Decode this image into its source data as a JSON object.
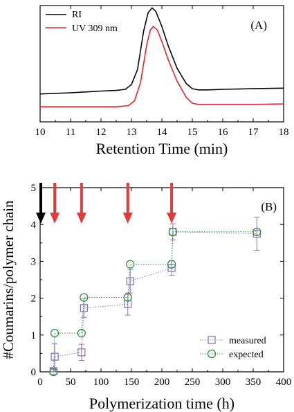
{
  "colors": {
    "ri": "#000000",
    "uv": "#e8242a",
    "measured": "#8a74c0",
    "expected": "#2f8f3a",
    "arrow_red": "#e23b3b",
    "arrow_black": "#000000",
    "axis": "#000000"
  },
  "chart_data": [
    {
      "type": "line",
      "panel_label": "(A)",
      "xlabel": "Retention Time (min)",
      "ylabel": "",
      "xlim": [
        10,
        18
      ],
      "ylim": [
        0,
        1
      ],
      "x_ticks": [
        10,
        11,
        12,
        13,
        14,
        15,
        16,
        17,
        18
      ],
      "grid": false,
      "legend_position": "top-left",
      "legend": [
        "RI",
        "UV 309 nm"
      ],
      "series": [
        {
          "name": "RI",
          "color": "#000000",
          "x": [
            10.0,
            11.0,
            12.0,
            12.5,
            12.8,
            13.0,
            13.2,
            13.4,
            13.55,
            13.68,
            13.8,
            14.0,
            14.2,
            14.5,
            14.8,
            15.0,
            15.2,
            15.5,
            16.0,
            17.0,
            18.0
          ],
          "y": [
            0.24,
            0.25,
            0.265,
            0.27,
            0.28,
            0.32,
            0.45,
            0.78,
            0.94,
            0.98,
            0.95,
            0.82,
            0.66,
            0.46,
            0.33,
            0.285,
            0.275,
            0.275,
            0.28,
            0.285,
            0.29
          ]
        },
        {
          "name": "UV 309 nm",
          "color": "#e8242a",
          "x": [
            10.0,
            11.0,
            12.0,
            12.5,
            12.9,
            13.1,
            13.3,
            13.5,
            13.62,
            13.72,
            13.85,
            14.0,
            14.2,
            14.5,
            14.8,
            15.0,
            15.2,
            16.0,
            17.0,
            18.0
          ],
          "y": [
            0.13,
            0.13,
            0.13,
            0.13,
            0.14,
            0.18,
            0.34,
            0.66,
            0.79,
            0.82,
            0.79,
            0.69,
            0.54,
            0.35,
            0.21,
            0.16,
            0.15,
            0.15,
            0.15,
            0.155
          ]
        }
      ]
    },
    {
      "type": "scatter",
      "panel_label": "(B)",
      "xlabel": "Polymerization time (h)",
      "ylabel": "#Coumarins/polymer chain",
      "xlim": [
        0,
        400
      ],
      "ylim": [
        0,
        5
      ],
      "x_ticks": [
        0,
        50,
        100,
        150,
        200,
        250,
        300,
        350,
        400
      ],
      "y_ticks": [
        0,
        1,
        2,
        3,
        4,
        5
      ],
      "grid": false,
      "legend_position": "bottom-right",
      "legend": [
        "measured",
        "expected"
      ],
      "arrows": {
        "black_x": [
          0
        ],
        "red_x": [
          24,
          68,
          144,
          216
        ]
      },
      "series": [
        {
          "name": "measured",
          "marker": "square",
          "color": "#8a74c0",
          "x": [
            22,
            24,
            68,
            72,
            144,
            148,
            216,
            218,
            356
          ],
          "y": [
            0.02,
            0.41,
            0.53,
            1.73,
            1.84,
            2.46,
            2.82,
            3.8,
            3.75
          ],
          "err": [
            0.05,
            0.35,
            0.22,
            0.25,
            0.3,
            0.32,
            0.2,
            0.22,
            0.45
          ]
        },
        {
          "name": "expected",
          "marker": "circle",
          "color": "#2f8f3a",
          "x": [
            22,
            24,
            68,
            72,
            144,
            148,
            216,
            218,
            356
          ],
          "y": [
            0.0,
            1.05,
            1.05,
            2.02,
            2.02,
            2.92,
            2.92,
            3.8,
            3.8
          ]
        }
      ]
    }
  ]
}
